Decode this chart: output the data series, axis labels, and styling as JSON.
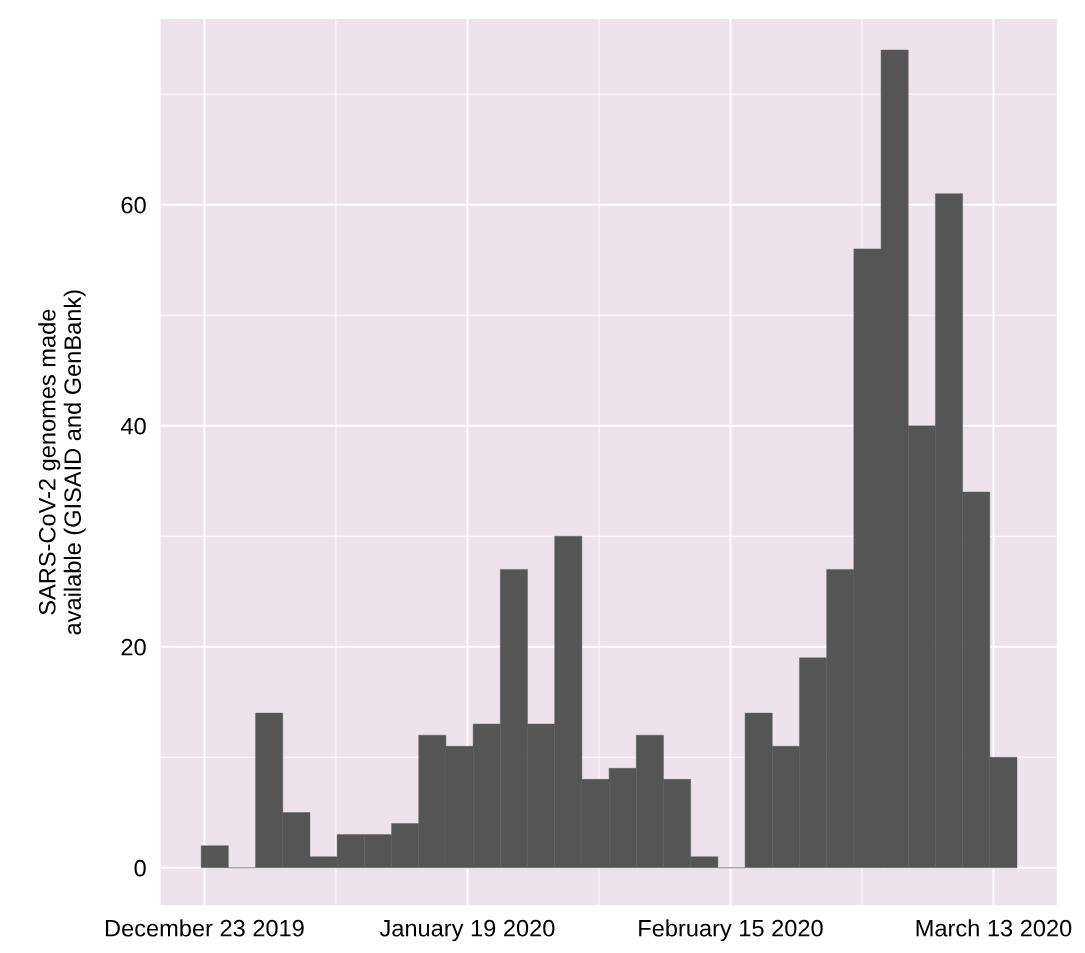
{
  "chart_data": {
    "type": "histogram",
    "ylabel": "SARS-CoV-2 genomes made\navailable (GISAID and GenBank)",
    "bins": [
      "2019-12-22T16:00",
      "2019-12-25T11:00",
      "2019-12-28T06:00",
      "2019-12-31T01:00",
      "2020-01-02T20:00",
      "2020-01-05T15:00",
      "2020-01-08T10:00",
      "2020-01-11T05:00",
      "2020-01-14T00:00",
      "2020-01-16T19:00",
      "2020-01-19T14:00",
      "2020-01-22T09:00",
      "2020-01-25T04:00",
      "2020-01-27T23:00",
      "2020-01-30T18:00",
      "2020-02-02T13:00",
      "2020-02-05T08:00",
      "2020-02-08T03:00",
      "2020-02-10T22:00",
      "2020-02-13T17:00",
      "2020-02-16T12:00",
      "2020-02-19T07:00",
      "2020-02-22T02:00",
      "2020-02-24T21:00",
      "2020-02-27T16:00",
      "2020-03-01T11:00",
      "2020-03-04T06:00",
      "2020-03-07T01:00",
      "2020-03-09T20:00",
      "2020-03-12T15:00",
      "2020-03-15T10:00"
    ],
    "values": [
      2,
      0,
      14,
      5,
      1,
      3,
      3,
      4,
      12,
      11,
      13,
      27,
      13,
      30,
      8,
      9,
      12,
      8,
      1,
      0,
      14,
      11,
      19,
      27,
      56,
      74,
      40,
      61,
      34,
      10
    ],
    "color": "#555555",
    "xlim": [
      "2019-12-18T12:00",
      "2020-03-19T12:00"
    ],
    "xticks": [
      {
        "value": "2019-12-23",
        "label": "December 23 2019"
      },
      {
        "value": "2020-01-19",
        "label": "January 19 2020"
      },
      {
        "value": "2020-02-15",
        "label": "February 15 2020"
      },
      {
        "value": "2020-03-13",
        "label": "March 13 2020"
      }
    ],
    "ylim": [
      -3.4,
      76.8
    ],
    "yticks": [
      0,
      20,
      40,
      60
    ],
    "grid": true
  }
}
